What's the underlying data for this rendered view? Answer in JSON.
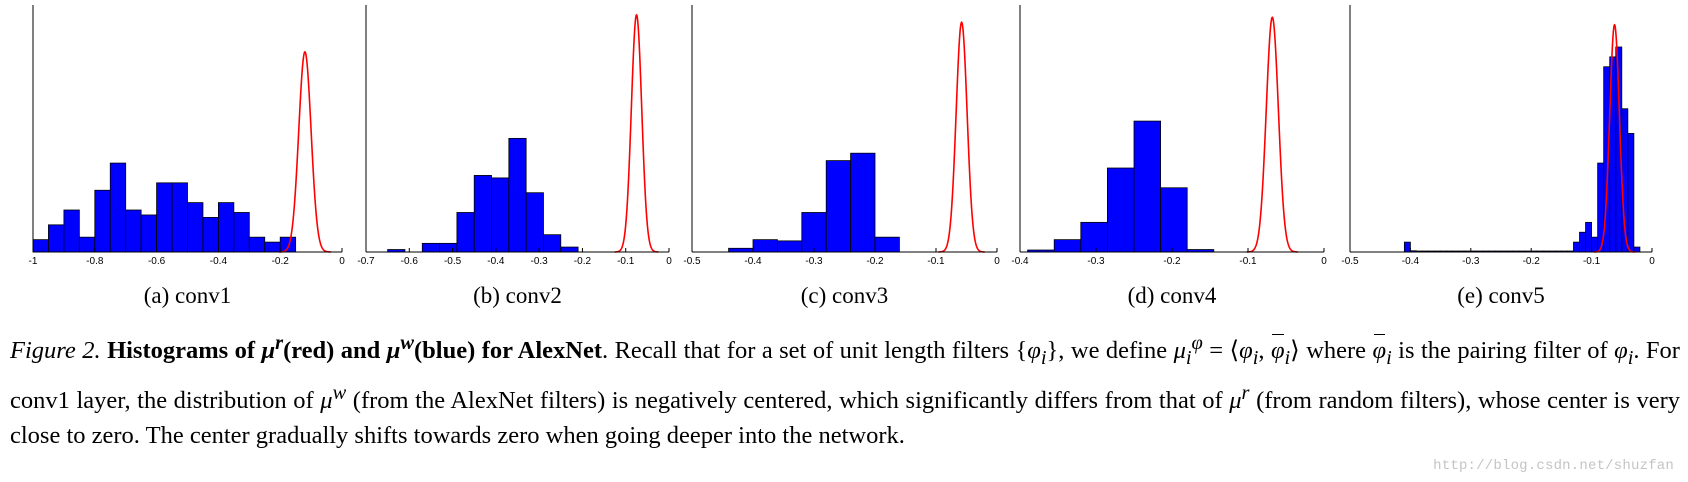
{
  "chart_data": [
    {
      "type": "bar",
      "label": "(a) conv1",
      "xlim": [
        -1,
        0
      ],
      "ticks": [
        -1,
        -0.8,
        -0.6,
        -0.4,
        -0.2,
        0
      ],
      "tick_labels": [
        "-1",
        "-0.8",
        "-0.6",
        "-0.4",
        "-0.2",
        "0"
      ],
      "colors": {
        "bars": "#0000ff",
        "curve": "#ff0000"
      },
      "blue_bins": {
        "start": -1.0,
        "width": 0.05,
        "heights": [
          0.05,
          0.11,
          0.17,
          0.06,
          0.25,
          0.36,
          0.17,
          0.15,
          0.28,
          0.28,
          0.2,
          0.14,
          0.2,
          0.16,
          0.06,
          0.04,
          0.06
        ]
      },
      "red_curve": {
        "center": -0.12,
        "sigma": 0.02,
        "peak": 0.81
      }
    },
    {
      "type": "bar",
      "label": "(b) conv2",
      "xlim": [
        -0.7,
        0
      ],
      "ticks": [
        -0.7,
        -0.6,
        -0.5,
        -0.4,
        -0.3,
        -0.2,
        -0.1,
        0
      ],
      "tick_labels": [
        "-0.7",
        "-0.6",
        "-0.5",
        "-0.4",
        "-0.3",
        "-0.2",
        "-0.1",
        "0"
      ],
      "colors": {
        "bars": "#0000ff",
        "curve": "#ff0000"
      },
      "blue_bins": {
        "start": -0.65,
        "width": 0.04,
        "heights": [
          0.01,
          0,
          0.035,
          0.035,
          0.16,
          0.31,
          0.3,
          0.46,
          0.24,
          0.07,
          0.02
        ]
      },
      "red_curve": {
        "center": -0.075,
        "sigma": 0.012,
        "peak": 0.96
      }
    },
    {
      "type": "bar",
      "label": "(c) conv3",
      "xlim": [
        -0.5,
        0
      ],
      "ticks": [
        -0.5,
        -0.4,
        -0.3,
        -0.2,
        -0.1,
        0
      ],
      "tick_labels": [
        "-0.5",
        "-0.4",
        "-0.3",
        "-0.2",
        "-0.1",
        "0"
      ],
      "colors": {
        "bars": "#0000ff",
        "curve": "#ff0000"
      },
      "blue_bins": {
        "start": -0.44,
        "width": 0.04,
        "heights": [
          0.015,
          0.05,
          0.045,
          0.16,
          0.37,
          0.4,
          0.06
        ]
      },
      "red_curve": {
        "center": -0.058,
        "sigma": 0.009,
        "peak": 0.93
      }
    },
    {
      "type": "bar",
      "label": "(d) conv4",
      "xlim": [
        -0.4,
        0
      ],
      "ticks": [
        -0.4,
        -0.3,
        -0.2,
        -0.1,
        0
      ],
      "tick_labels": [
        "-0.4",
        "-0.3",
        "-0.2",
        "-0.1",
        "0"
      ],
      "colors": {
        "bars": "#0000ff",
        "curve": "#ff0000"
      },
      "blue_bins": {
        "start": -0.39,
        "width": 0.035,
        "heights": [
          0.008,
          0.05,
          0.12,
          0.34,
          0.53,
          0.26,
          0.01
        ]
      },
      "red_curve": {
        "center": -0.068,
        "sigma": 0.008,
        "peak": 0.95
      }
    },
    {
      "type": "bar",
      "label": "(e) conv5",
      "xlim": [
        -0.5,
        0
      ],
      "ticks": [
        -0.5,
        -0.4,
        -0.3,
        -0.2,
        -0.1,
        0
      ],
      "tick_labels": [
        "-0.5",
        "-0.4",
        "-0.3",
        "-0.2",
        "-0.1",
        "0"
      ],
      "colors": {
        "bars": "#0000ff",
        "curve": "#ff0000"
      },
      "blue_bins": {
        "start": -0.41,
        "width": 0.01,
        "heights": [
          0.04,
          0.005,
          0.004,
          0.004,
          0.004,
          0.004,
          0.004,
          0.004,
          0.004,
          0.004,
          0.004,
          0.004,
          0.004,
          0.004,
          0.004,
          0.004,
          0.004,
          0.004,
          0.004,
          0.004,
          0.004,
          0.004,
          0.004,
          0.004,
          0.004,
          0.004,
          0.004,
          0.004,
          0.04,
          0.08,
          0.12,
          0.06,
          0.36,
          0.75,
          0.79,
          0.83,
          0.58,
          0.48,
          0.02
        ]
      },
      "red_curve": {
        "center": -0.062,
        "sigma": 0.008,
        "peak": 0.92
      }
    }
  ],
  "caption": {
    "figure_label": "Figure 2.",
    "bold_a": "Histograms of ",
    "bold_b": "(red) and ",
    "bold_c": "(blue) for AlexNet",
    "line1_rest": ". Recall that for a set of unit length filters ",
    "line1_mid": ", we define ",
    "line2_start": "where ",
    "line2_mid": " is the pairing filter of ",
    "line2_rest": ". For conv1 layer, the distribution of ",
    "line2_end": " (from the AlexNet filters) is negatively centered, which",
    "line3_start": "significantly differs from that of ",
    "line3_rest": " (from random filters), whose center is very close to zero. The center gradually shifts towards zero",
    "line4": "when going deeper into the network."
  },
  "watermark": "http://blog.csdn.net/shuzfan"
}
